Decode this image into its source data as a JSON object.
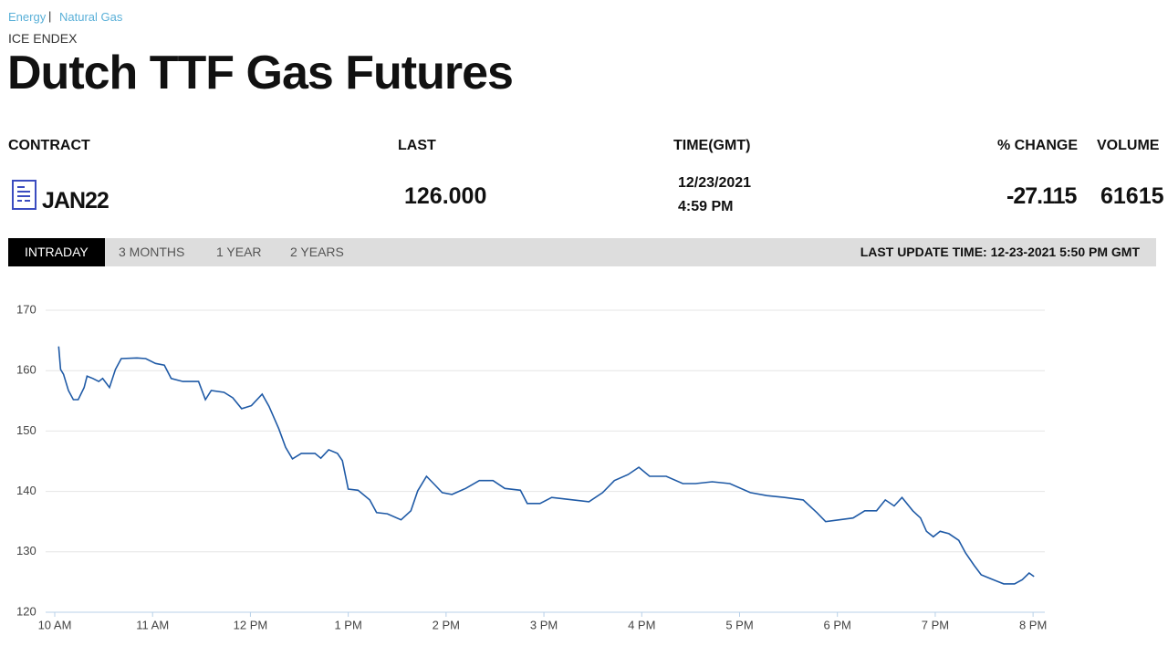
{
  "breadcrumb": [
    "Energy",
    "Natural Gas"
  ],
  "exchange": "ICE ENDEX",
  "title": "Dutch TTF Gas Futures",
  "table": {
    "headers": [
      "CONTRACT",
      "LAST",
      "TIME(GMT)",
      "% CHANGE",
      "VOLUME"
    ],
    "row": {
      "contract": "JAN22",
      "last": "126.000",
      "date": "12/23/2021",
      "time": "4:59 PM",
      "change": "-27.115",
      "volume": "61615"
    }
  },
  "tabs": [
    "INTRADAY",
    "3 MONTHS",
    "1 YEAR",
    "2 YEARS"
  ],
  "last_update": "LAST UPDATE TIME: 12-23-2021 5:50 PM GMT",
  "chart_data": {
    "type": "line",
    "xlim": [
      10,
      20.12
    ],
    "ylim": [
      120,
      170
    ],
    "yticks": [
      120,
      130,
      140,
      150,
      160,
      170
    ],
    "xticks": [
      {
        "value": 10,
        "label": "10 AM"
      },
      {
        "value": 11,
        "label": "11 AM"
      },
      {
        "value": 12,
        "label": "12 PM"
      },
      {
        "value": 13,
        "label": "1 PM"
      },
      {
        "value": 14,
        "label": "2 PM"
      },
      {
        "value": 15,
        "label": "3 PM"
      },
      {
        "value": 16,
        "label": "4 PM"
      },
      {
        "value": 17,
        "label": "5 PM"
      },
      {
        "value": 18,
        "label": "6 PM"
      },
      {
        "value": 19,
        "label": "7 PM"
      },
      {
        "value": 20,
        "label": "8 PM"
      }
    ],
    "grid": true,
    "series": [
      {
        "color": "#1f5aa6",
        "x": [
          10.04,
          10.06,
          10.09,
          10.14,
          10.19,
          10.24,
          10.3,
          10.33,
          10.39,
          10.45,
          10.49,
          10.56,
          10.62,
          10.68,
          10.84,
          10.93,
          11.03,
          11.12,
          11.19,
          11.31,
          11.47,
          11.54,
          11.6,
          11.73,
          11.82,
          11.91,
          12.01,
          12.12,
          12.19,
          12.29,
          12.36,
          12.43,
          12.52,
          12.66,
          12.72,
          12.8,
          12.89,
          12.94,
          13.0,
          13.1,
          13.22,
          13.29,
          13.4,
          13.54,
          13.64,
          13.71,
          13.8,
          13.89,
          13.96,
          14.06,
          14.2,
          14.34,
          14.48,
          14.6,
          14.76,
          14.83,
          14.96,
          15.08,
          15.24,
          15.46,
          15.6,
          15.72,
          15.86,
          15.97,
          16.08,
          16.25,
          16.42,
          16.55,
          16.72,
          16.9,
          17.11,
          17.28,
          17.46,
          17.65,
          17.79,
          17.88,
          18.02,
          18.16,
          18.28,
          18.4,
          18.49,
          18.58,
          18.66,
          18.77,
          18.85,
          18.91,
          18.98,
          19.05,
          19.14,
          19.24,
          19.31,
          19.4,
          19.47,
          19.59,
          19.7,
          19.81,
          19.89,
          19.96,
          20.01
        ],
        "values": [
          164,
          160.2,
          159.4,
          156.7,
          155.2,
          155.2,
          157.2,
          159.1,
          158.7,
          158.2,
          158.7,
          157.2,
          160.2,
          162,
          162.1,
          162,
          161.2,
          160.9,
          158.7,
          158.2,
          158.2,
          155.2,
          156.7,
          156.4,
          155.5,
          153.7,
          154.2,
          156.1,
          154.1,
          150.4,
          147.3,
          145.4,
          146.3,
          146.3,
          145.5,
          146.9,
          146.3,
          145.1,
          140.4,
          140.2,
          138.6,
          136.5,
          136.3,
          135.3,
          136.8,
          140.1,
          142.5,
          141,
          139.8,
          139.5,
          140.5,
          141.8,
          141.8,
          140.5,
          140.2,
          138,
          138,
          139,
          138.7,
          138.3,
          139.8,
          141.8,
          142.8,
          144,
          142.5,
          142.5,
          141.3,
          141.3,
          141.6,
          141.3,
          139.8,
          139.3,
          139,
          138.6,
          136.5,
          135,
          135.3,
          135.6,
          136.8,
          136.8,
          138.6,
          137.6,
          139,
          136.8,
          135.6,
          133.4,
          132.5,
          133.4,
          133,
          131.9,
          129.8,
          127.7,
          126.2,
          125.4,
          124.7,
          124.7,
          125.4,
          126.5,
          125.9
        ]
      }
    ]
  }
}
